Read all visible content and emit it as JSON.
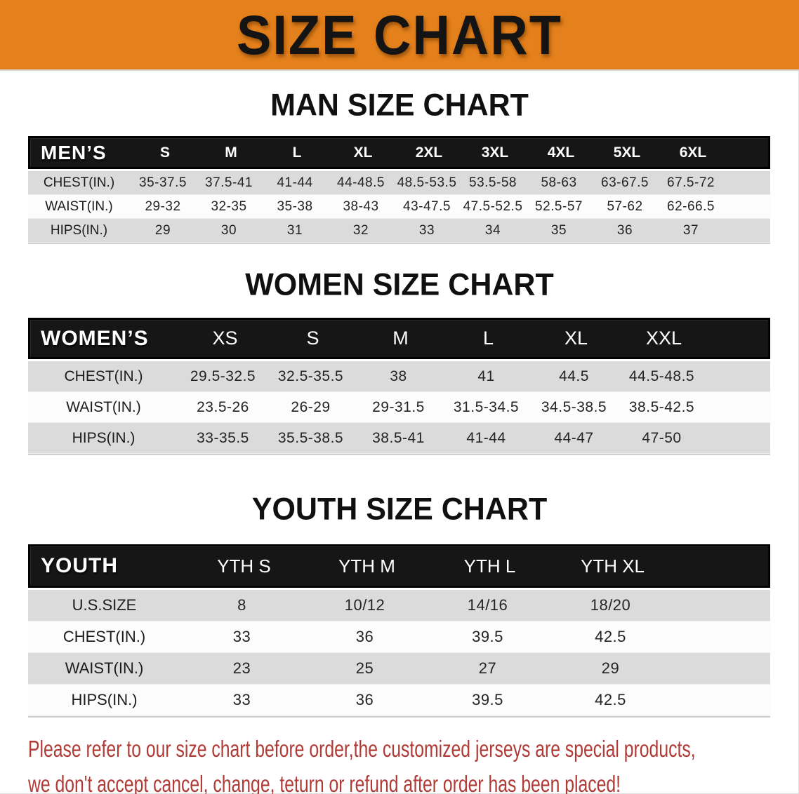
{
  "banner": {
    "title": "SIZE CHART"
  },
  "man": {
    "heading": "MAN SIZE CHART",
    "table": {
      "label": "MEN’S",
      "columns": [
        "S",
        "M",
        "L",
        "XL",
        "2XL",
        "3XL",
        "4XL",
        "5XL",
        "6XL"
      ],
      "rows": [
        {
          "label": "CHEST(IN.)",
          "values": [
            "35-37.5",
            "37.5-41",
            "41-44",
            "44-48.5",
            "48.5-53.5",
            "53.5-58",
            "58-63",
            "63-67.5",
            "67.5-72"
          ]
        },
        {
          "label": "WAIST(IN.)",
          "values": [
            "29-32",
            "32-35",
            "35-38",
            "38-43",
            "43-47.5",
            "47.5-52.5",
            "52.5-57",
            "57-62",
            "62-66.5"
          ]
        },
        {
          "label": "HIPS(IN.)",
          "values": [
            "29",
            "30",
            "31",
            "32",
            "33",
            "34",
            "35",
            "36",
            "37"
          ]
        }
      ]
    }
  },
  "women": {
    "heading": "WOMEN SIZE CHART",
    "table": {
      "label": "WOMEN’S",
      "columns": [
        "XS",
        "S",
        "M",
        "L",
        "XL",
        "XXL"
      ],
      "rows": [
        {
          "label": "CHEST(IN.)",
          "values": [
            "29.5-32.5",
            "32.5-35.5",
            "38",
            "41",
            "44.5",
            "44.5-48.5"
          ]
        },
        {
          "label": "WAIST(IN.)",
          "values": [
            "23.5-26",
            "26-29",
            "29-31.5",
            "31.5-34.5",
            "34.5-38.5",
            "38.5-42.5"
          ]
        },
        {
          "label": "HIPS(IN.)",
          "values": [
            "33-35.5",
            "35.5-38.5",
            "38.5-41",
            "41-44",
            "44-47",
            "47-50"
          ]
        }
      ]
    }
  },
  "youth": {
    "heading": "YOUTH SIZE CHART",
    "table": {
      "label": "YOUTH",
      "columns": [
        "YTH S",
        "YTH M",
        "YTH L",
        "YTH XL"
      ],
      "rows": [
        {
          "label": "U.S.SIZE",
          "values": [
            "8",
            "10/12",
            "14/16",
            "18/20"
          ]
        },
        {
          "label": "CHEST(IN.)",
          "values": [
            "33",
            "36",
            "39.5",
            "42.5"
          ]
        },
        {
          "label": "WAIST(IN.)",
          "values": [
            "23",
            "25",
            "27",
            "29"
          ]
        },
        {
          "label": "HIPS(IN.)",
          "values": [
            "33",
            "36",
            "39.5",
            "42.5"
          ]
        }
      ]
    }
  },
  "footer": {
    "line1": "Please refer to our size chart before order,the customized jerseys are special products,",
    "line2": "we don't accept cancel, change, teturn or refund after order has been placed!"
  },
  "colors": {
    "banner_bg": "#E5811C",
    "header_bar": "#161616",
    "row_gray": "#DBDBDB",
    "row_white": "#FCFCFC",
    "notice_text": "#B03A36"
  }
}
